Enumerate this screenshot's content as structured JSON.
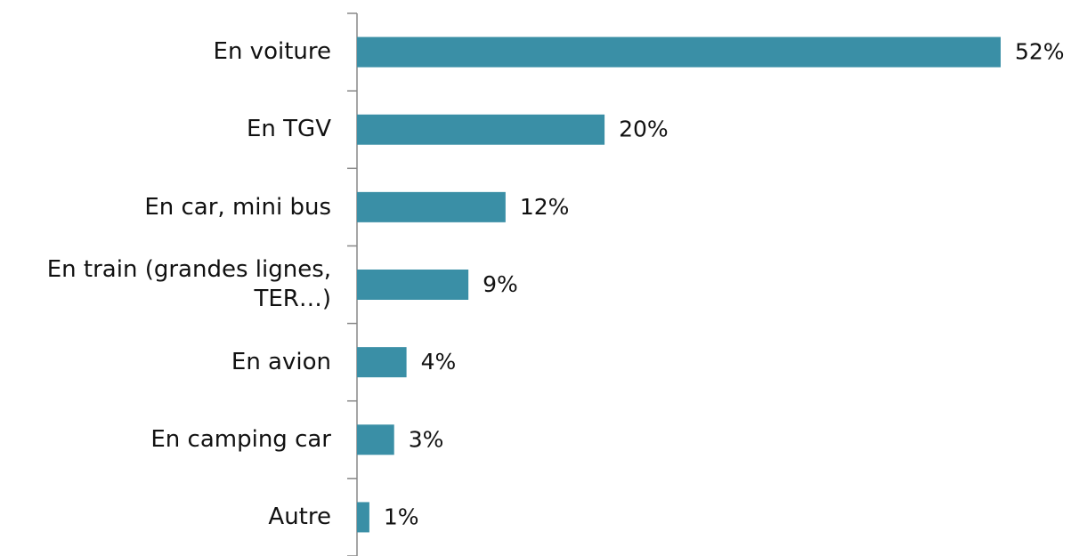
{
  "chart_data": {
    "type": "bar",
    "orientation": "horizontal",
    "categories": [
      "En voiture",
      "En TGV",
      "En car, mini bus",
      "En train (grandes lignes, TER…)",
      "En avion",
      "En camping car",
      "Autre"
    ],
    "values": [
      52,
      20,
      12,
      9,
      4,
      3,
      1
    ],
    "value_labels": [
      "52%",
      "20%",
      "12%",
      "9%",
      "4%",
      "3%",
      "1%"
    ],
    "color": "#3a8fa6"
  }
}
